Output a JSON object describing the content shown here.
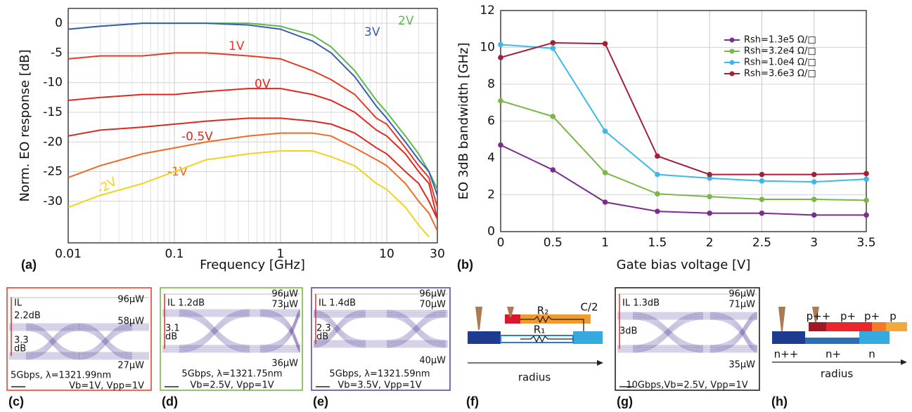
{
  "chart_data": [
    {
      "type": "line",
      "label": "(a)",
      "xlabel": "Frequency [GHz]",
      "ylabel": "Norm. EO response [dB]",
      "log_x": true,
      "grid": true,
      "minor_grid": true,
      "markers": false,
      "x": [
        0.01,
        0.02,
        0.05,
        0.1,
        0.2,
        0.5,
        1,
        2,
        3,
        5,
        8,
        10,
        15,
        20,
        25,
        30
      ],
      "series": [
        {
          "name": "2V",
          "color": "#5cb84a",
          "values": [
            -1,
            -0.5,
            0,
            0,
            0,
            0,
            -0.5,
            -2,
            -4,
            -8,
            -13,
            -15,
            -19,
            -22,
            -25,
            -28
          ]
        },
        {
          "name": "3V",
          "color": "#3a5fb0",
          "values": [
            -1,
            -0.5,
            0,
            0,
            0,
            -0.3,
            -1,
            -3,
            -5,
            -9,
            -14,
            -16,
            -20,
            -23,
            -25,
            -29
          ]
        },
        {
          "name": "1V",
          "color": "#e53a26",
          "values": [
            -6,
            -5.5,
            -5.5,
            -5,
            -5,
            -5.5,
            -6,
            -8,
            -9.5,
            -12,
            -16,
            -17,
            -21,
            -24,
            -26,
            -31
          ]
        },
        {
          "name": "0V",
          "color": "#de2a1e",
          "values": [
            -13,
            -12.5,
            -12,
            -12,
            -11.5,
            -11,
            -11,
            -12,
            -13,
            -15,
            -18,
            -19,
            -22,
            -25,
            -27,
            -33
          ]
        },
        {
          "name": "-0.5V",
          "color": "#d92a22",
          "values": [
            -19,
            -18,
            -17.5,
            -17,
            -16.5,
            -16,
            -16,
            -16.5,
            -17,
            -18.5,
            -21,
            -22,
            -25,
            -27,
            -30,
            -33
          ]
        },
        {
          "name": "-1V",
          "color": "#ef6a24",
          "values": [
            -26,
            -24,
            -22,
            -21,
            -20,
            -19,
            -18.5,
            -18.5,
            -19,
            -21,
            -23,
            -24,
            -27,
            -30,
            -32,
            -35
          ]
        },
        {
          "name": "-2V",
          "color": "#f2d21a",
          "values": [
            -31,
            -29,
            -27,
            -25,
            -23,
            -22,
            -21.5,
            -21.5,
            -22.5,
            -24,
            -27,
            -28,
            -31,
            -34,
            -36,
            null
          ]
        }
      ],
      "xlim": [
        0.01,
        30
      ],
      "xticks": [
        0.01,
        0.1,
        1,
        10,
        30
      ],
      "ylim": [
        -37,
        2.5
      ],
      "yticks": [
        0,
        -5,
        -10,
        -15,
        -20,
        -25,
        -30
      ]
    },
    {
      "type": "line",
      "label": "(b)",
      "xlabel": "Gate bias voltage [V]",
      "ylabel": "EO 3dB bandwidth [GHz]",
      "log_x": false,
      "grid": true,
      "markers": true,
      "legend": "upper right",
      "x": [
        0,
        0.5,
        1,
        1.5,
        2,
        2.5,
        3,
        3.5
      ],
      "series": [
        {
          "name": "Rsh=1.3e5  Ω/□",
          "color": "#7b2d8e",
          "values": [
            4.7,
            3.35,
            1.6,
            1.1,
            1.0,
            1.0,
            0.9,
            0.9
          ]
        },
        {
          "name": "Rsh=3.2e4 Ω/□",
          "color": "#7ab648",
          "values": [
            7.1,
            6.25,
            3.2,
            2.05,
            1.9,
            1.75,
            1.75,
            1.7
          ]
        },
        {
          "name": "Rsh=1.0e4 Ω/□",
          "color": "#3fb8e8",
          "values": [
            10.15,
            9.95,
            5.45,
            3.1,
            2.9,
            2.75,
            2.7,
            2.85
          ]
        },
        {
          "name": "Rsh=3.6e3 Ω/□",
          "color": "#a3203a",
          "values": [
            9.45,
            10.25,
            10.2,
            4.1,
            3.1,
            3.1,
            3.1,
            3.15
          ]
        }
      ],
      "xlim": [
        0,
        3.5
      ],
      "xticks": [
        0,
        0.5,
        1,
        1.5,
        2,
        2.5,
        3,
        3.5
      ],
      "ylim": [
        0,
        12
      ],
      "yticks": [
        0,
        2,
        4,
        6,
        8,
        10,
        12
      ]
    }
  ],
  "panels": [
    {
      "label": "(c)",
      "texts": [
        "IL",
        "2.2dB",
        "3.3",
        "dB",
        "96μW",
        "58μW",
        "27μW",
        "5Gbps, λ=1321.99nm",
        "Vb=1V, Vpp=1V"
      ]
    },
    {
      "label": "(d)",
      "texts": [
        "IL 1.2dB",
        "3.1",
        "dB",
        "96μW",
        "73μW",
        "36μW",
        "5Gbps, λ=1321.75nm",
        "Vb=2.5V, Vpp=1V"
      ]
    },
    {
      "label": "(e)",
      "texts": [
        "IL 1.4dB",
        "2.3",
        "dB",
        "96μW",
        "70μW",
        "40μW",
        "5Gbps, λ=1321.59nm",
        "Vb=3.5V, Vpp=1V"
      ]
    },
    {
      "label": "(f)",
      "texts": [
        "R₂",
        "C/2",
        "R₁",
        "radius"
      ]
    },
    {
      "label": "(g)",
      "texts": [
        "IL 1.3dB",
        "3dB",
        "96μW",
        "71μW",
        "35μW",
        "10Gbps,Vb=2.5V, Vpp=1V"
      ]
    },
    {
      "label": "(h)",
      "texts": [
        "p++",
        "p+",
        "p+",
        "p",
        "n++",
        "n+",
        "n",
        "radius"
      ]
    }
  ]
}
